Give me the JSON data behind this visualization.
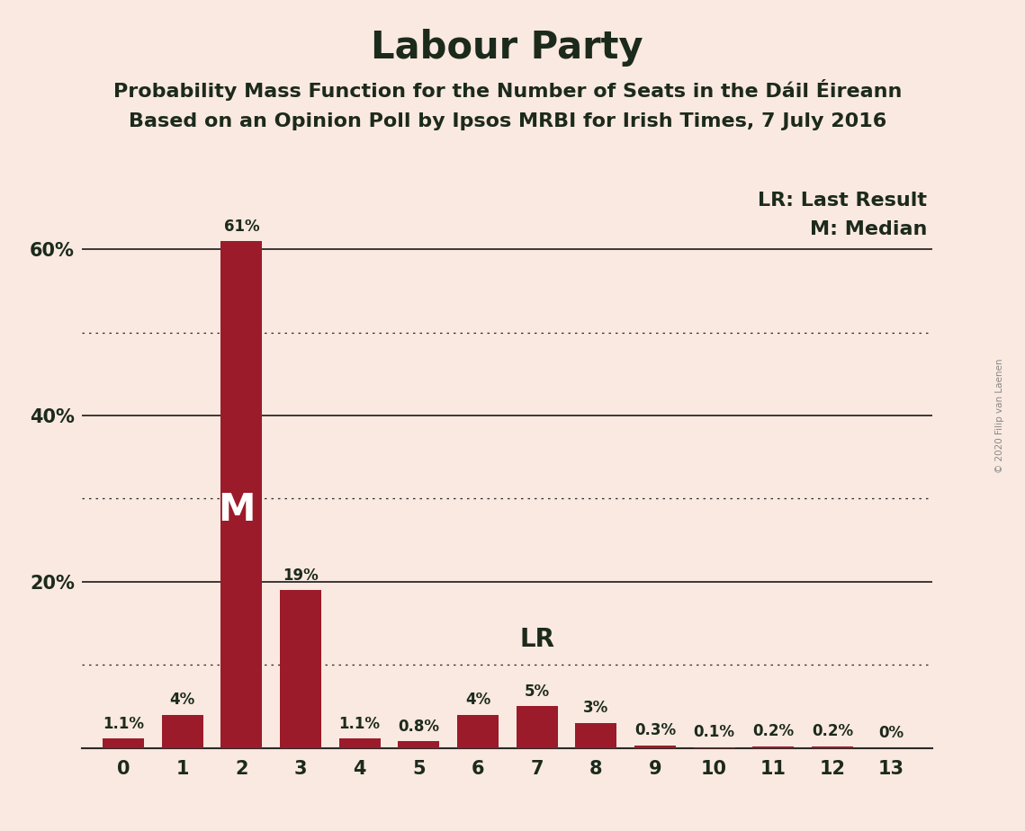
{
  "title": "Labour Party",
  "subtitle1": "Probability Mass Function for the Number of Seats in the Dáil Éireann",
  "subtitle2": "Based on an Opinion Poll by Ipsos MRBI for Irish Times, 7 July 2016",
  "copyright": "© 2020 Filip van Laenen",
  "categories": [
    0,
    1,
    2,
    3,
    4,
    5,
    6,
    7,
    8,
    9,
    10,
    11,
    12,
    13
  ],
  "values": [
    1.1,
    4.0,
    61.0,
    19.0,
    1.1,
    0.8,
    4.0,
    5.0,
    3.0,
    0.3,
    0.1,
    0.2,
    0.2,
    0.0
  ],
  "labels": [
    "1.1%",
    "4%",
    "61%",
    "19%",
    "1.1%",
    "0.8%",
    "4%",
    "5%",
    "3%",
    "0.3%",
    "0.1%",
    "0.2%",
    "0.2%",
    "0%"
  ],
  "bar_color": "#9B1B2A",
  "background_color": "#FAE9E0",
  "text_color": "#1C2A1C",
  "median_bar": 2,
  "last_result_bar": 7,
  "ylim": [
    0,
    68
  ],
  "yticks": [
    20,
    40,
    60
  ],
  "ytick_labels": [
    "20%",
    "40%",
    "60%"
  ],
  "solid_lines": [
    20,
    40,
    60
  ],
  "dotted_lines": [
    10,
    30,
    50
  ],
  "grid_color": "#2a2a2a",
  "title_fontsize": 30,
  "subtitle_fontsize": 16,
  "label_fontsize": 12,
  "tick_fontsize": 15,
  "legend_fontsize": 16,
  "M_fontsize": 30,
  "LR_fontsize": 20
}
